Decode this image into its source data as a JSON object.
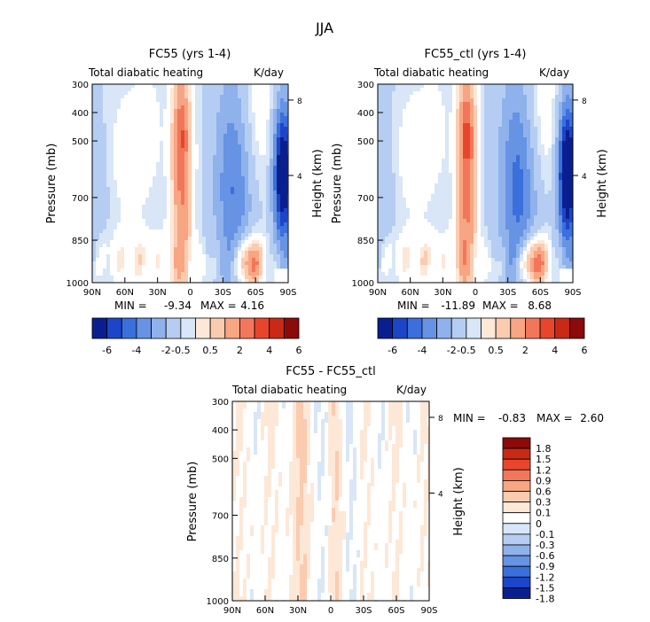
{
  "figure_title": "JJA",
  "colors": {
    "warm": [
      "#fde8d8",
      "#fbcbb0",
      "#f7a582",
      "#f2775a",
      "#e8462c",
      "#c92a16",
      "#8b0a0a"
    ],
    "cool": [
      "#d8e6f7",
      "#b5cdf2",
      "#8fb2ec",
      "#6693e3",
      "#3b6fdc",
      "#1c45c8",
      "#0a1f8f"
    ],
    "outline": "#000000"
  },
  "chart_data": [
    {
      "id": "p1",
      "type": "heatmap",
      "title": "FC55 (yrs 1-4)",
      "left_label": "Total diabatic heating",
      "right_label": "K/day",
      "xlabel": "",
      "ylabel": "Pressure (mb)",
      "y2label": "Height (km)",
      "x_ticks": [
        "90N",
        "60N",
        "30N",
        "0",
        "30S",
        "60S",
        "90S"
      ],
      "y_ticks": [
        "300",
        "400",
        "500",
        "700",
        "850",
        "1000"
      ],
      "y2_ticks": [
        "8",
        "4"
      ],
      "min_label": "MIN =",
      "min_value": "-9.34",
      "max_label": "MAX =",
      "max_value": "4.16",
      "data_scale": 1
    },
    {
      "id": "p2",
      "type": "heatmap",
      "title": "FC55_ctl (yrs 1-4)",
      "left_label": "Total diabatic heating",
      "right_label": "K/day",
      "xlabel": "",
      "ylabel": "Pressure (mb)",
      "y2label": "Height (km)",
      "x_ticks": [
        "90N",
        "60N",
        "30N",
        "0",
        "30S",
        "60S",
        "90S"
      ],
      "y_ticks": [
        "300",
        "400",
        "500",
        "700",
        "850",
        "1000"
      ],
      "y2_ticks": [
        "8",
        "4"
      ],
      "min_label": "MIN =",
      "min_value": "-11.89",
      "max_label": "MAX =",
      "max_value": "8.68",
      "data_scale": 1
    },
    {
      "id": "p3",
      "type": "heatmap",
      "title": "FC55 - FC55_ctl",
      "left_label": "Total diabatic heating",
      "right_label": "K/day",
      "xlabel": "",
      "ylabel": "Pressure (mb)",
      "y2label": "Height (km)",
      "x_ticks": [
        "90N",
        "60N",
        "30N",
        "0",
        "30S",
        "60S",
        "90S"
      ],
      "y_ticks": [
        "300",
        "400",
        "500",
        "700",
        "850",
        "1000"
      ],
      "y2_ticks": [
        "8",
        "4"
      ],
      "min_label": "MIN =",
      "min_value": "-0.83",
      "max_label": "MAX =",
      "max_value": "2.60",
      "data_scale": 0.3
    }
  ],
  "colorbar_top": {
    "labels": [
      "-6",
      "-4",
      "-2",
      "-0.5",
      "0.5",
      "2",
      "4",
      "6"
    ],
    "levels": [
      -6,
      -5,
      -4,
      -3,
      -2,
      -1,
      -0.5,
      0,
      0.5,
      1,
      2,
      3,
      4,
      5,
      6
    ]
  },
  "colorbar_diff": {
    "labels": [
      "1.8",
      "1.5",
      "1.2",
      "0.9",
      "0.6",
      "0.3",
      "0.1",
      "0",
      "-0.1",
      "-0.3",
      "-0.6",
      "-0.9",
      "-1.2",
      "-1.5",
      "-1.8"
    ]
  }
}
